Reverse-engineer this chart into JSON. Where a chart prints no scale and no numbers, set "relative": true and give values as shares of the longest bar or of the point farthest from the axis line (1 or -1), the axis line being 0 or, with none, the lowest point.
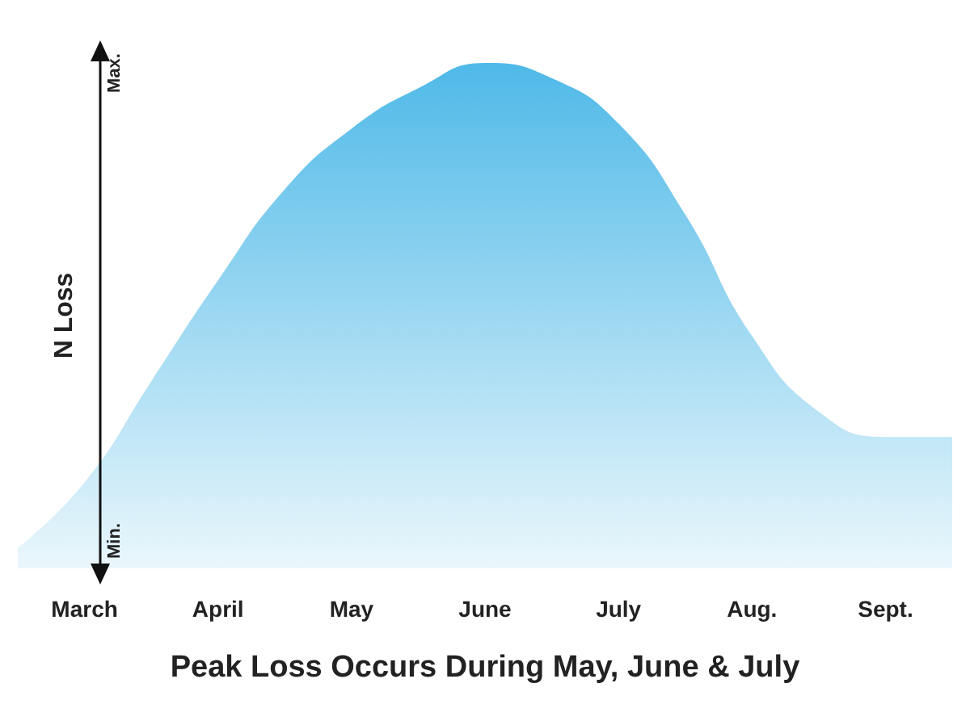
{
  "chart_data": {
    "type": "area",
    "relative": true,
    "xlabel": "Peak Loss Occurs During May, June & July",
    "ylabel": "N Loss",
    "categories": [
      null,
      "March",
      null,
      "April",
      null,
      "May",
      null,
      "June",
      null,
      "July",
      null,
      "Aug.",
      null,
      "Sept.",
      null
    ],
    "series": [
      {
        "color": "#4fb9e8",
        "values": [
          0.04,
          0.17,
          0.37,
          0.57,
          0.75,
          0.87,
          0.95,
          1,
          0.97,
          0.88,
          0.7,
          0.46,
          0.31,
          0.26,
          0.26
        ]
      }
    ],
    "annotations": [
      "Max.",
      "Min."
    ],
    "grid": false,
    "marker": "none"
  }
}
